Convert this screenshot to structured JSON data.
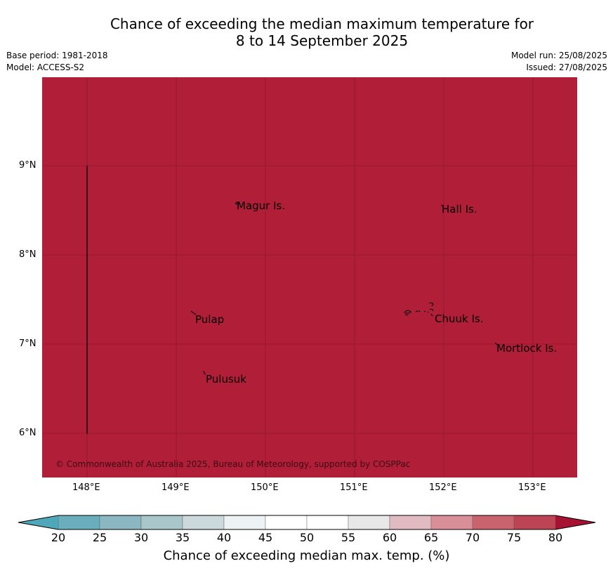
{
  "title": {
    "line1": "Chance of exceeding the median maximum temperature for",
    "line2": "8 to 14 September 2025"
  },
  "meta": {
    "base_period": "Base period: 1981-2018",
    "model": "Model: ACCESS-S2",
    "model_run": "Model run: 25/08/2025",
    "issued": "Issued: 27/08/2025"
  },
  "map": {
    "fill_color": "#b01e38",
    "lon_labels": [
      "148°E",
      "149°E",
      "150°E",
      "151°E",
      "152°E",
      "153°E"
    ],
    "lat_labels": [
      "9°N",
      "8°N",
      "7°N",
      "6°N"
    ],
    "places": [
      {
        "name": "Magur Is.",
        "lon": 149.7,
        "lat": 8.55
      },
      {
        "name": "Hall Is.",
        "lon": 152.0,
        "lat": 8.5
      },
      {
        "name": "Pulap",
        "lon": 149.2,
        "lat": 7.28
      },
      {
        "name": "Chuuk Is.",
        "lon": 151.88,
        "lat": 7.29
      },
      {
        "name": "Mortlock Is.",
        "lon": 152.6,
        "lat": 6.95
      },
      {
        "name": "Pulusuk",
        "lon": 149.33,
        "lat": 6.62
      }
    ],
    "copyright": "© Commonwealth of Australia 2025, Bureau of Meteorology, supported by COSPPac"
  },
  "colorbar": {
    "title": "Chance of exceeding median max. temp. (%)",
    "ticks": [
      "20",
      "25",
      "30",
      "35",
      "40",
      "45",
      "50",
      "55",
      "60",
      "65",
      "70",
      "75",
      "80"
    ],
    "colors": [
      "#6aaebd",
      "#8ab7c2",
      "#a9c7ca",
      "#cbd9dd",
      "#edf2f4",
      "#ffffff",
      "#ffffff",
      "#e8e8e8",
      "#e2bac1",
      "#d98f98",
      "#c9646f",
      "#bc4455"
    ],
    "low_color": "#4ea8b9",
    "high_color": "#a51232"
  }
}
